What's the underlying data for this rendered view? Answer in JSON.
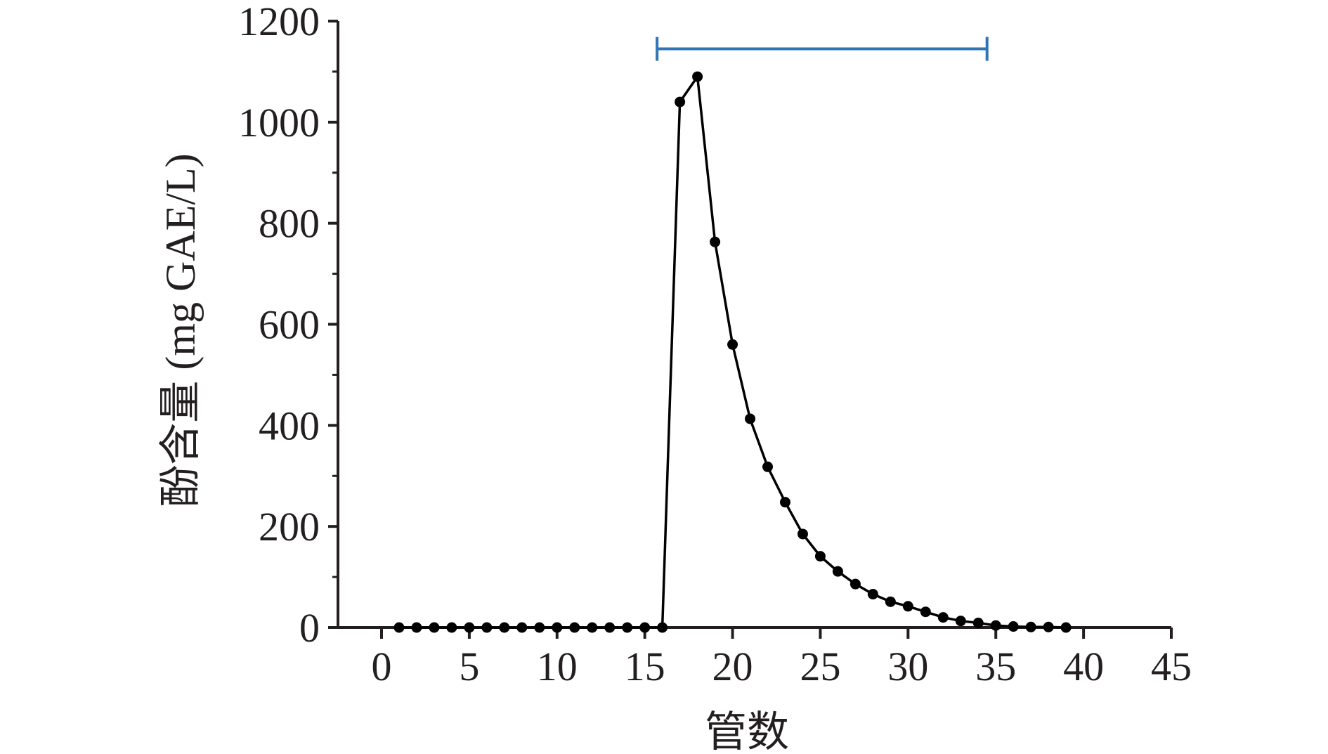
{
  "chart_data": {
    "type": "line",
    "xlabel": "管数",
    "ylabel": "酚含量 (mg GAE/L)",
    "xlim": [
      -2.5,
      45
    ],
    "ylim": [
      0,
      1200
    ],
    "xticks": [
      0,
      5,
      10,
      15,
      20,
      25,
      30,
      35,
      40,
      45
    ],
    "yticks": [
      0,
      200,
      400,
      600,
      800,
      1000,
      1200
    ],
    "grid": false,
    "legend": "none",
    "colors": {
      "axis": "#231f20",
      "series": "#000000",
      "bracket": "#2e75b6"
    },
    "series": [
      {
        "x": [
          1,
          2,
          3,
          4,
          5,
          6,
          7,
          8,
          9,
          10,
          11,
          12,
          13,
          14,
          15,
          16,
          17,
          18,
          19,
          20,
          21,
          22,
          23,
          24,
          25,
          26,
          27,
          28,
          29,
          30,
          31,
          32,
          33,
          34,
          35,
          36,
          37,
          38,
          39
        ],
        "values": [
          0,
          0,
          0,
          0,
          0,
          0,
          0,
          0,
          0,
          0,
          0,
          0,
          0,
          0,
          0,
          0,
          1040,
          1090,
          763,
          560,
          413,
          318,
          248,
          185,
          141,
          111,
          86,
          66,
          51,
          42,
          31,
          20,
          13,
          9,
          4,
          2,
          1,
          1,
          0
        ]
      }
    ],
    "annotations": [
      {
        "type": "bracket",
        "x_start": 15.7,
        "x_end": 34.5,
        "y": 1145
      }
    ]
  }
}
